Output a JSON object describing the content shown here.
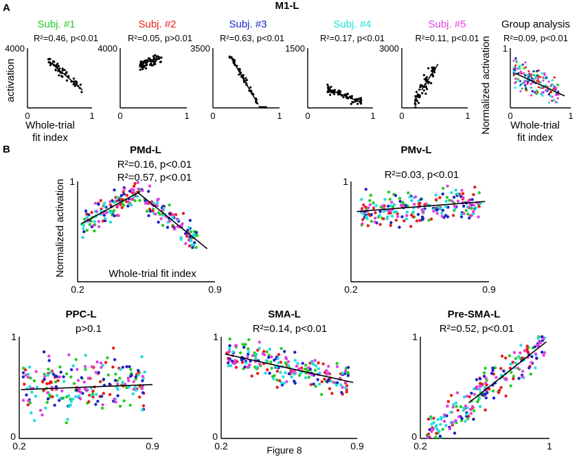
{
  "figure_caption": "Figure 8",
  "colors": {
    "subj1": "#22cc22",
    "subj2": "#e81c1c",
    "subj3": "#1a24c4",
    "subj4": "#22dddd",
    "subj5": "#e040e0",
    "black": "#000000"
  },
  "panel_a": {
    "letter": "A",
    "region": "M1-L",
    "x_axis_label_line1": "Whole-trial",
    "x_axis_label_line2": "fit index",
    "y_axis_label": "activation",
    "group_y_axis_label": "Normalized activation"
  },
  "panel_b": {
    "letter": "B",
    "x_axis_label": "Whole-trial fit index",
    "y_axis_label": "Normalized activation"
  },
  "chart_data": [
    {
      "id": "subj1",
      "type": "scatter",
      "title": "Subj. #1",
      "title_color": "#22cc22",
      "stat": "R²=0.46, p<0.01",
      "xlim": [
        0,
        1
      ],
      "ylim": [
        0,
        4000
      ],
      "x_tick_labels": [
        "0",
        "1"
      ],
      "y_tick_label": "4000",
      "n": 50,
      "x_range": [
        0.32,
        0.85
      ],
      "fit_from": [
        0.34,
        3100
      ],
      "fit_to": [
        0.85,
        1200
      ],
      "noise": 500,
      "color": "#000000"
    },
    {
      "id": "subj2",
      "type": "scatter",
      "title": "Subj. #2",
      "title_color": "#e81c1c",
      "stat": "R²=0.05, p>0.01",
      "xlim": [
        0,
        1
      ],
      "ylim": [
        0,
        4000
      ],
      "x_tick_labels": [
        "0",
        "1"
      ],
      "y_tick_label": "4000",
      "n": 70,
      "x_range": [
        0.3,
        0.62
      ],
      "fit_from": [
        0.3,
        2900
      ],
      "fit_to": [
        0.62,
        3400
      ],
      "noise": 450,
      "color": "#000000"
    },
    {
      "id": "subj3",
      "type": "scatter",
      "title": "Subj. #3",
      "title_color": "#1a24c4",
      "stat": "R²=0.63, p<0.01",
      "xlim": [
        0,
        1
      ],
      "ylim": [
        0,
        3500
      ],
      "x_tick_labels": [
        "0",
        "1"
      ],
      "y_tick_label": "3500",
      "n": 55,
      "x_range": [
        0.25,
        0.8
      ],
      "fit_from": [
        0.28,
        2900
      ],
      "fit_to": [
        0.68,
        200
      ],
      "noise": 380,
      "color": "#000000"
    },
    {
      "id": "subj4",
      "type": "scatter",
      "title": "Subj. #4",
      "title_color": "#22dddd",
      "stat": "R²=0.17, p<0.01",
      "xlim": [
        0,
        1
      ],
      "ylim": [
        0,
        1500
      ],
      "x_tick_labels": [
        "0",
        "1"
      ],
      "y_tick_label": "1500",
      "n": 60,
      "x_range": [
        0.28,
        0.82
      ],
      "fit_from": [
        0.3,
        480
      ],
      "fit_to": [
        0.8,
        150
      ],
      "noise": 160,
      "color": "#000000"
    },
    {
      "id": "subj5",
      "type": "scatter",
      "title": "Subj. #5",
      "title_color": "#e040e0",
      "stat": "R²=0.11, p<0.01",
      "xlim": [
        0,
        1
      ],
      "ylim": [
        0,
        3000
      ],
      "x_tick_labels": [
        "0",
        "1"
      ],
      "y_tick_label": "3000",
      "n": 60,
      "x_range": [
        0.2,
        0.5
      ],
      "fit_from": [
        0.3,
        900
      ],
      "fit_to": [
        0.55,
        2200
      ],
      "noise": 650,
      "color": "#000000"
    },
    {
      "id": "group",
      "type": "scatter",
      "title": "Group analysis",
      "title_color": "#000000",
      "stat": "R²=0.09, p<0.01",
      "xlim": [
        0,
        1
      ],
      "ylim": [
        0,
        1
      ],
      "x_tick_labels": [
        "0",
        "1"
      ],
      "y_tick_label": "1",
      "n_per_subject": 35,
      "x_range": [
        0.05,
        0.8
      ],
      "fit_from": [
        0.08,
        0.58
      ],
      "fit_to": [
        0.9,
        0.2
      ],
      "noise": 0.25,
      "multicolor": true
    },
    {
      "id": "pmd",
      "type": "scatter",
      "title": "PMd-L",
      "stats": [
        "R²=0.16, p<0.01",
        "R²=0.57, p<0.01"
      ],
      "xlim": [
        0.2,
        0.9
      ],
      "ylim": [
        0,
        1
      ],
      "x_tick_labels": [
        "0.2",
        "0.9"
      ],
      "y_tick_label": "1",
      "n_per_subject": 45,
      "x_range": [
        0.22,
        0.82
      ],
      "fit_segments": [
        [
          [
            0.22,
            0.58
          ],
          [
            0.52,
            0.9
          ]
        ],
        [
          [
            0.5,
            0.9
          ],
          [
            0.86,
            0.33
          ]
        ]
      ],
      "noise": 0.14,
      "multicolor": true
    },
    {
      "id": "pmv",
      "type": "scatter",
      "title": "PMv-L",
      "stat": "R²=0.03, p<0.01",
      "xlim": [
        0.2,
        0.9
      ],
      "ylim": [
        0,
        1
      ],
      "x_tick_labels": [
        "0.2",
        "0.9"
      ],
      "y_tick_label": "1",
      "n_per_subject": 45,
      "x_range": [
        0.24,
        0.86
      ],
      "fit_from": [
        0.23,
        0.7
      ],
      "fit_to": [
        0.88,
        0.8
      ],
      "noise": 0.17,
      "multicolor": true
    },
    {
      "id": "ppc",
      "type": "scatter",
      "title": "PPC-L",
      "stat": "p>0.1",
      "xlim": [
        0.2,
        0.9
      ],
      "ylim": [
        0,
        1
      ],
      "x_tick_labels": [
        "0.2",
        "0.9"
      ],
      "y_tick_label": "1",
      "y_zero_label": "0",
      "n_per_subject": 45,
      "x_range": [
        0.22,
        0.86
      ],
      "fit_from": [
        0.21,
        0.48
      ],
      "fit_to": [
        0.9,
        0.53
      ],
      "noise": 0.3,
      "multicolor": true
    },
    {
      "id": "sma",
      "type": "scatter",
      "title": "SMA-L",
      "stat": "R²=0.14, p<0.01",
      "xlim": [
        0.2,
        0.9
      ],
      "ylim": [
        0,
        1
      ],
      "x_tick_labels": [
        "0.2",
        "0.9"
      ],
      "y_tick_label": "1",
      "y_zero_label": "0",
      "n_per_subject": 45,
      "x_range": [
        0.23,
        0.86
      ],
      "fit_from": [
        0.22,
        0.83
      ],
      "fit_to": [
        0.88,
        0.55
      ],
      "noise": 0.17,
      "multicolor": true
    },
    {
      "id": "presma",
      "type": "scatter",
      "title": "Pre-SMA-L",
      "stat": "R²=0.52, p<0.01",
      "xlim": [
        0.2,
        1
      ],
      "ylim": [
        0,
        1
      ],
      "x_tick_labels": [
        "0.2",
        "1"
      ],
      "y_tick_label": "1",
      "y_zero_label": "0",
      "n_per_subject": 45,
      "x_range": [
        0.24,
        0.97
      ],
      "fit_from": [
        0.5,
        0.35
      ],
      "fit_to": [
        0.98,
        0.95
      ],
      "noise": 0.2,
      "multicolor": true
    }
  ]
}
